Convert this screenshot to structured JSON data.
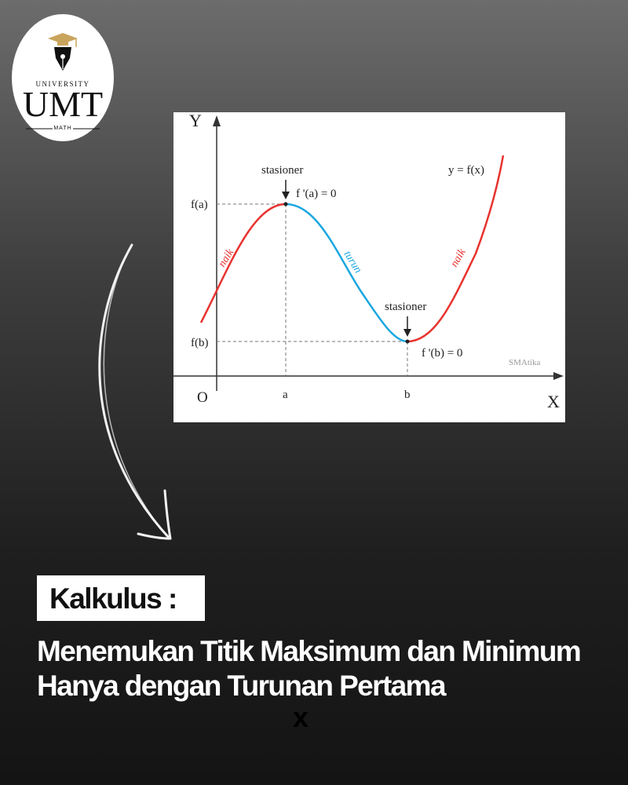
{
  "logo": {
    "top_text": "UNIVERSITY",
    "main_text": "UMT",
    "bottom_text": "MATH",
    "icon": "graduation-cap-pen-nib-icon"
  },
  "graph": {
    "y_axis_label": "Y",
    "x_axis_label": "X",
    "origin_label": "O",
    "fa_label": "f(a)",
    "fb_label": "f(b)",
    "a_label": "a",
    "b_label": "b",
    "stasioner_top": "stasioner",
    "stasioner_bottom": "stasioner",
    "derivative_a": "f '(a) = 0",
    "derivative_b": "f '(b) = 0",
    "function_label": "y = f(x)",
    "naik_left": "naik",
    "turun": "turun",
    "naik_right": "naik",
    "watermark": "SMAtika",
    "colors": {
      "increasing": "#e8332f",
      "decreasing": "#1aa7e0"
    }
  },
  "heading": {
    "box_label": "Kalkulus :",
    "line1": "Menemukan Titik Maksimum dan Minimum",
    "line2": "Hanya dengan Turunan Pertama",
    "stray_mark": "x"
  }
}
